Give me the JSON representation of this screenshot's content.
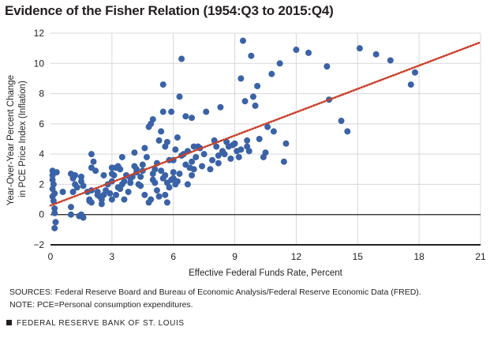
{
  "title": "Evidence of the Fisher Relation (1954:Q3 to 2015:Q4)",
  "sources": "SOURCES: Federal Reserve Board and Bureau of Economic Analysis/Federal Reserve Economic Data (FRED).",
  "note": "NOTE: PCE=Personal consumption expenditures.",
  "footer": "FEDERAL RESERVE BANK OF ST. LOUIS",
  "chart_data": {
    "type": "scatter",
    "xlabel": "Effective Federal Funds Rate, Percent",
    "ylabel_line1": "Year-Over-Year Percent Change",
    "ylabel_line2": "in PCE Price Index (Inflation)",
    "xlim": [
      0,
      21
    ],
    "ylim": [
      -2,
      12
    ],
    "xticks": [
      "0",
      "3",
      "6",
      "9",
      "12",
      "15",
      "18",
      "21"
    ],
    "yticks": [
      "−2",
      "0",
      "2",
      "4",
      "6",
      "8",
      "10",
      "12"
    ],
    "grid": true,
    "colors": {
      "points": "#3a62a7",
      "trend": "#c8412c",
      "grid": "#d8d8d8",
      "axis": "#231f20"
    },
    "trend_line": {
      "x": [
        0,
        21
      ],
      "y": [
        0.6,
        11.4
      ],
      "style": "dotted"
    },
    "points": [
      [
        0.1,
        2.9
      ],
      [
        0.1,
        2.6
      ],
      [
        0.1,
        2.3
      ],
      [
        0.15,
        2.0
      ],
      [
        0.1,
        1.7
      ],
      [
        0.2,
        1.4
      ],
      [
        0.1,
        1.2
      ],
      [
        0.2,
        0.4
      ],
      [
        0.2,
        0.1
      ],
      [
        0.25,
        -0.5
      ],
      [
        0.2,
        -0.9
      ],
      [
        0.15,
        0.9
      ],
      [
        0.6,
        1.5
      ],
      [
        0.3,
        2.8
      ],
      [
        1.0,
        2.7
      ],
      [
        1.1,
        2.4
      ],
      [
        1.2,
        2.0
      ],
      [
        1.1,
        1.5
      ],
      [
        1.0,
        0.5
      ],
      [
        1.0,
        0.0
      ],
      [
        1.4,
        -0.1
      ],
      [
        1.5,
        0.0
      ],
      [
        1.6,
        -0.2
      ],
      [
        1.3,
        1.8
      ],
      [
        1.5,
        2.2
      ],
      [
        1.5,
        2.5
      ],
      [
        1.6,
        1.9
      ],
      [
        1.2,
        2.6
      ],
      [
        1.8,
        1.5
      ],
      [
        1.9,
        1.0
      ],
      [
        2.0,
        0.8
      ],
      [
        2.0,
        1.6
      ],
      [
        2.0,
        3.1
      ],
      [
        2.0,
        4.0
      ],
      [
        2.1,
        3.5
      ],
      [
        2.2,
        2.9
      ],
      [
        2.3,
        1.5
      ],
      [
        2.4,
        1.2
      ],
      [
        2.5,
        0.7
      ],
      [
        2.5,
        1.0
      ],
      [
        2.6,
        1.3
      ],
      [
        2.6,
        2.6
      ],
      [
        2.7,
        1.6
      ],
      [
        2.8,
        2.0
      ],
      [
        3.0,
        3.1
      ],
      [
        3.0,
        2.7
      ],
      [
        3.0,
        2.2
      ],
      [
        3.1,
        2.6
      ],
      [
        3.2,
        3.1
      ],
      [
        3.3,
        3.2
      ],
      [
        3.4,
        3.0
      ],
      [
        3.5,
        2.0
      ],
      [
        3.0,
        1.0
      ],
      [
        3.2,
        1.3
      ],
      [
        3.4,
        1.7
      ],
      [
        3.6,
        1.0
      ],
      [
        3.5,
        3.8
      ],
      [
        3.7,
        2.6
      ],
      [
        3.8,
        1.5
      ],
      [
        3.9,
        2.1
      ],
      [
        4.0,
        2.5
      ],
      [
        4.1,
        3.2
      ],
      [
        4.1,
        4.1
      ],
      [
        4.2,
        3.0
      ],
      [
        4.3,
        2.0
      ],
      [
        4.4,
        2.5
      ],
      [
        4.5,
        3.3
      ],
      [
        4.6,
        4.4
      ],
      [
        4.7,
        3.8
      ],
      [
        4.8,
        5.8
      ],
      [
        4.9,
        6.0
      ],
      [
        5.0,
        6.3
      ],
      [
        5.1,
        3.0
      ],
      [
        5.1,
        2.1
      ],
      [
        5.2,
        1.6
      ],
      [
        5.3,
        1.2
      ],
      [
        4.9,
        1.0
      ],
      [
        4.8,
        0.8
      ],
      [
        5.0,
        2.3
      ],
      [
        5.2,
        3.4
      ],
      [
        5.3,
        4.9
      ],
      [
        5.4,
        5.5
      ],
      [
        5.5,
        6.8
      ],
      [
        5.5,
        8.6
      ],
      [
        5.6,
        4.5
      ],
      [
        5.7,
        4.8
      ],
      [
        5.8,
        3.6
      ],
      [
        5.9,
        6.8
      ],
      [
        5.4,
        2.9
      ],
      [
        5.6,
        2.6
      ],
      [
        5.7,
        2.1
      ],
      [
        5.8,
        1.8
      ],
      [
        5.6,
        1.3
      ],
      [
        5.7,
        0.8
      ],
      [
        6.0,
        3.6
      ],
      [
        6.0,
        2.4
      ],
      [
        6.1,
        2.0
      ],
      [
        6.2,
        2.2
      ],
      [
        6.1,
        4.3
      ],
      [
        6.2,
        5.1
      ],
      [
        6.3,
        7.8
      ],
      [
        6.4,
        10.3
      ],
      [
        6.5,
        4.0
      ],
      [
        6.6,
        6.5
      ],
      [
        6.7,
        4.2
      ],
      [
        6.8,
        3.1
      ],
      [
        6.9,
        6.4
      ],
      [
        6.9,
        2.6
      ],
      [
        7.0,
        4.5
      ],
      [
        7.1,
        3.8
      ],
      [
        7.2,
        4.5
      ],
      [
        7.3,
        4.4
      ],
      [
        7.4,
        3.2
      ],
      [
        7.6,
        6.8
      ],
      [
        7.8,
        3.0
      ],
      [
        6.7,
        2.0
      ],
      [
        8.0,
        4.9
      ],
      [
        8.1,
        4.5
      ],
      [
        8.2,
        3.9
      ],
      [
        8.3,
        7.1
      ],
      [
        8.2,
        3.4
      ],
      [
        8.4,
        4.1
      ],
      [
        8.5,
        4.0
      ],
      [
        8.6,
        4.8
      ],
      [
        8.7,
        4.5
      ],
      [
        8.8,
        3.7
      ],
      [
        9.0,
        4.7
      ],
      [
        9.1,
        4.2
      ],
      [
        9.2,
        3.8
      ],
      [
        9.3,
        9.0
      ],
      [
        9.4,
        11.5
      ],
      [
        9.5,
        7.5
      ],
      [
        9.6,
        4.5
      ],
      [
        9.7,
        4.2
      ],
      [
        9.8,
        10.5
      ],
      [
        9.9,
        7.8
      ],
      [
        10.0,
        7.2
      ],
      [
        10.1,
        8.5
      ],
      [
        10.2,
        5.0
      ],
      [
        10.4,
        3.8
      ],
      [
        10.5,
        4.1
      ],
      [
        10.6,
        5.8
      ],
      [
        10.8,
        9.3
      ],
      [
        10.9,
        5.5
      ],
      [
        11.2,
        10.0
      ],
      [
        11.4,
        3.5
      ],
      [
        11.5,
        4.7
      ],
      [
        12.0,
        10.9
      ],
      [
        12.6,
        10.7
      ],
      [
        13.5,
        9.8
      ],
      [
        13.6,
        7.6
      ],
      [
        14.2,
        6.2
      ],
      [
        14.5,
        5.5
      ],
      [
        15.1,
        11.0
      ],
      [
        15.9,
        10.6
      ],
      [
        16.6,
        10.2
      ],
      [
        17.6,
        8.6
      ],
      [
        17.8,
        9.4
      ],
      [
        9.6,
        4.9
      ],
      [
        8.9,
        4.6
      ],
      [
        9.3,
        4.3
      ],
      [
        8.4,
        4.2
      ],
      [
        7.9,
        3.6
      ],
      [
        7.5,
        4.0
      ],
      [
        6.9,
        3.5
      ],
      [
        6.4,
        3.9
      ],
      [
        6.0,
        2.8
      ],
      [
        5.9,
        2.3
      ],
      [
        5.5,
        2.4
      ],
      [
        5.0,
        2.7
      ],
      [
        4.5,
        2.9
      ],
      [
        4.2,
        2.8
      ],
      [
        3.9,
        2.4
      ],
      [
        3.6,
        2.2
      ],
      [
        3.3,
        1.8
      ],
      [
        2.9,
        1.4
      ],
      [
        2.3,
        1.3
      ],
      [
        1.9,
        0.9
      ],
      [
        4.6,
        1.3
      ],
      [
        4.4,
        1.9
      ],
      [
        6.3,
        2.7
      ],
      [
        6.6,
        3.3
      ],
      [
        7.0,
        3.0
      ]
    ]
  }
}
